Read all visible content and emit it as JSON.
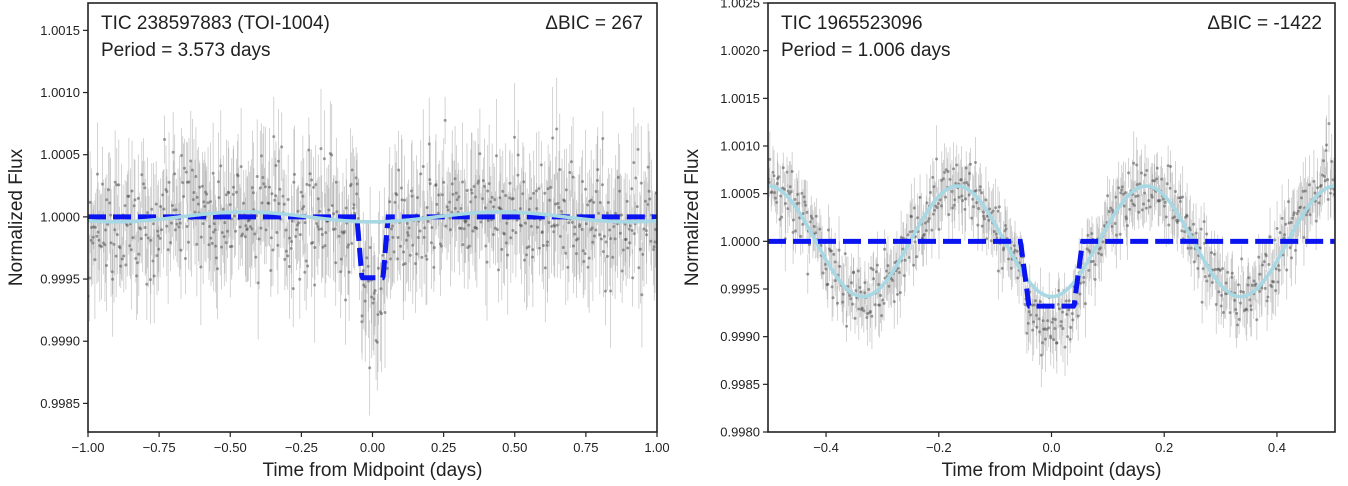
{
  "chart_data": [
    {
      "type": "scatter",
      "title": "",
      "annotation_target": "TIC 238597883 (TOI-1004)",
      "annotation_period": "Period = 3.573 days",
      "annotation_dbic": "ΔBIC = 267",
      "xlabel": "Time from Midpoint (days)",
      "ylabel": "Normalized Flux",
      "xlim": [
        -1.0,
        1.0
      ],
      "ylim": [
        0.99827,
        1.00172
      ],
      "xticks": [
        -1.0,
        -0.75,
        -0.5,
        -0.25,
        0.0,
        0.25,
        0.5,
        0.75,
        1.0
      ],
      "xtick_labels": [
        "−1.00",
        "−0.75",
        "−0.50",
        "−0.25",
        "0.00",
        "0.25",
        "0.50",
        "0.75",
        "1.00"
      ],
      "yticks": [
        0.9985,
        0.999,
        0.9995,
        1.0,
        1.0005,
        1.001,
        1.0015
      ],
      "ytick_labels": [
        "0.9985",
        "0.9990",
        "0.9995",
        "1.0000",
        "1.0005",
        "1.0010",
        "1.0015"
      ],
      "data_scatter": {
        "n_points": 700,
        "baseline": 1.0,
        "scatter_sigma": 0.00022,
        "errorbar_sigma": 0.00035
      },
      "series": [
        {
          "style": "dashed",
          "color": "#0a14f0",
          "model": "transit",
          "depth": 0.00049,
          "half_width": 0.055,
          "ingress": 0.018
        },
        {
          "style": "solid",
          "color": "#a8d8e3",
          "model": "sinusoid",
          "amplitude": 4e-05,
          "period": 0.9,
          "phase_peak": 0.45
        }
      ],
      "grid": false
    },
    {
      "type": "scatter",
      "title": "",
      "annotation_target": "TIC 1965523096",
      "annotation_period": "Period = 1.006 days",
      "annotation_dbic": "ΔBIC = -1422",
      "xlabel": "Time from Midpoint (days)",
      "ylabel": "Normalized Flux",
      "xlim": [
        -0.503,
        0.503
      ],
      "ylim": [
        0.998,
        1.0025
      ],
      "xticks": [
        -0.4,
        -0.2,
        0.0,
        0.2,
        0.4
      ],
      "xtick_labels": [
        "−0.4",
        "−0.2",
        "0.0",
        "0.2",
        "0.4"
      ],
      "yticks": [
        0.998,
        0.9985,
        0.999,
        0.9995,
        1.0,
        1.0005,
        1.001,
        1.0015,
        1.002,
        1.0025
      ],
      "ytick_labels": [
        "0.9980",
        "0.9985",
        "0.9990",
        "0.9995",
        "1.0000",
        "1.0005",
        "1.0010",
        "1.0015",
        "1.0020",
        "1.0025"
      ],
      "data_scatter": {
        "n_points": 650,
        "baseline": 1.0,
        "scatter_sigma": 0.00017,
        "errorbar_sigma": 0.00026
      },
      "series": [
        {
          "style": "dashed",
          "color": "#0a14f0",
          "model": "transit",
          "depth": 0.00068,
          "half_width": 0.055,
          "ingress": 0.015
        },
        {
          "style": "solid",
          "color": "#a8d8e3",
          "model": "sinusoid",
          "amplitude": 0.00058,
          "period": 0.335,
          "phase_peak": 0.168
        }
      ],
      "grid": false
    }
  ]
}
